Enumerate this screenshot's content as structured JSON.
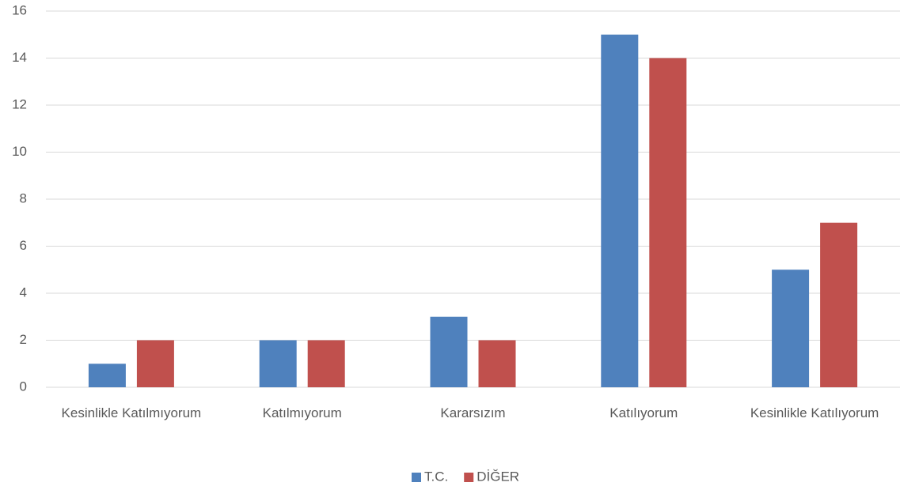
{
  "chart_data": {
    "type": "bar",
    "categories": [
      "Kesinlikle Katılmıyorum",
      "Katılmıyorum",
      "Kararsızım",
      "Katılıyorum",
      "Kesinlikle Katılıyorum"
    ],
    "series": [
      {
        "name": "T.C.",
        "color": "#4f81bd",
        "values": [
          1,
          2,
          3,
          15,
          5
        ]
      },
      {
        "name": "DİĞER",
        "color": "#c0504d",
        "values": [
          2,
          2,
          2,
          14,
          7
        ]
      }
    ],
    "ylim": [
      0,
      16
    ],
    "yticks": [
      0,
      2,
      4,
      6,
      8,
      10,
      12,
      14,
      16
    ],
    "grid": true,
    "legend": "bottom"
  }
}
